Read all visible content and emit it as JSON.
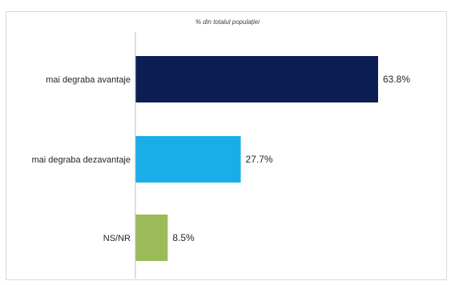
{
  "chart_data": {
    "type": "bar",
    "orientation": "horizontal",
    "title": "% din totalul populației",
    "categories": [
      "mai degraba avantaje",
      "mai degraba dezavantaje",
      "NS/NR"
    ],
    "values": [
      63.8,
      27.7,
      8.5
    ],
    "value_labels": [
      "63.8%",
      "27.7%",
      "8.5%"
    ],
    "colors": [
      "#0b1f54",
      "#1aaee8",
      "#9bbb59"
    ],
    "xlim": [
      0,
      70
    ],
    "grid": false,
    "legend": "none"
  }
}
